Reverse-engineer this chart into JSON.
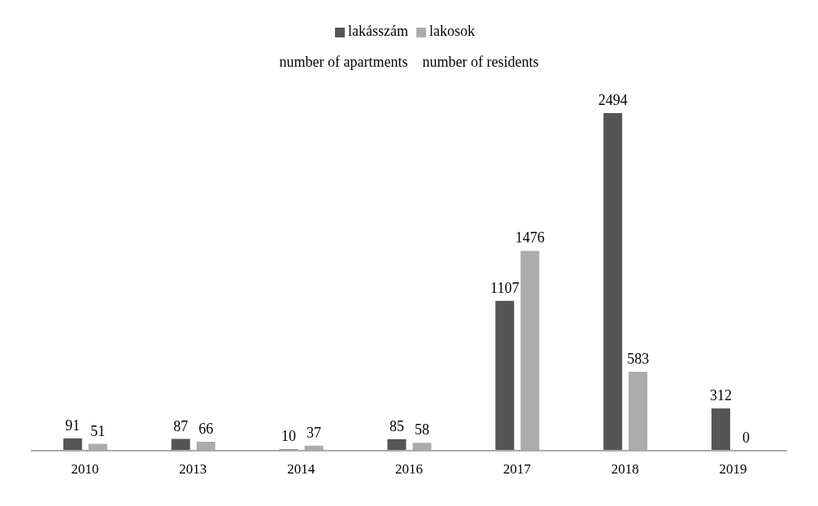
{
  "chart_data": {
    "type": "bar",
    "subtitle": "number of apartments    number of residents",
    "categories": [
      "2010",
      "2013",
      "2014",
      "2016",
      "2017",
      "2018",
      "2019"
    ],
    "series": [
      {
        "name": "lakásszám",
        "color": "#555555",
        "values": [
          91,
          87,
          10,
          85,
          1107,
          2494,
          312
        ]
      },
      {
        "name": "lakosok",
        "color": "#ababab",
        "values": [
          51,
          66,
          37,
          58,
          1476,
          583,
          0
        ]
      }
    ],
    "data_labels": true,
    "legend": "top",
    "grid": false
  }
}
